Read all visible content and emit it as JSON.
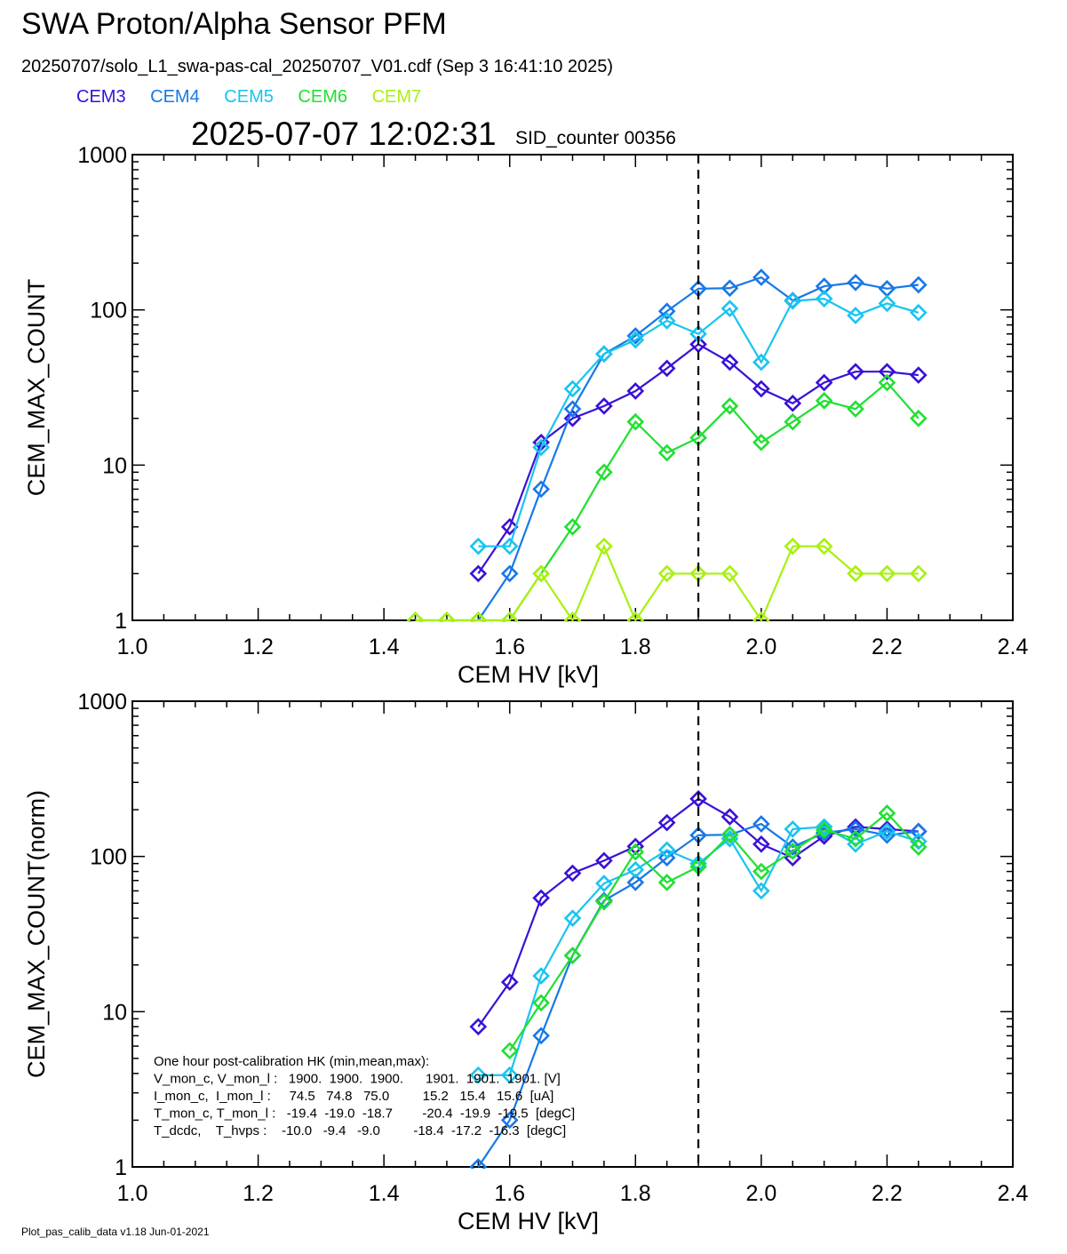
{
  "header": {
    "title": "SWA Proton/Alpha Sensor PFM",
    "subtitle": "20250707/solo_L1_swa-pas-cal_20250707_V01.cdf  (Sep  3 16:41:10 2025)",
    "timestamp": "2025-07-07 12:02:31",
    "sid_counter": "SID_counter 00356"
  },
  "legend": [
    {
      "name": "CEM3",
      "color": "#3a10d8"
    },
    {
      "name": "CEM4",
      "color": "#1878e8"
    },
    {
      "name": "CEM5",
      "color": "#18c4f0"
    },
    {
      "name": "CEM6",
      "color": "#20e030"
    },
    {
      "name": "CEM7",
      "color": "#a8f010"
    }
  ],
  "footer": "Plot_pas_calib_data v1.18 Jun-01-2021",
  "hk_text": [
    "One hour post-calibration HK (min,mean,max):",
    "V_mon_c, V_mon_l :   1900.  1900.  1900.      1901.  1901.  1901. [V]",
    "I_mon_c,  I_mon_l :     74.5   74.8   75.0         15.2   15.4   15.6  [uA]",
    "T_mon_c, T_mon_l :   -19.4  -19.0  -18.7        -20.4  -19.9  -19.5  [degC]",
    "T_dcdc,    T_hvps :    -10.0   -9.4   -9.0         -18.4  -17.2  -16.3  [degC]"
  ],
  "chart_data": [
    {
      "type": "line",
      "xlabel": "CEM HV [kV]",
      "ylabel": "CEM_MAX_COUNT",
      "xlim": [
        1.0,
        2.4
      ],
      "ylim": [
        1,
        1000
      ],
      "yscale": "log",
      "xticks": [
        "1.0",
        "1.2",
        "1.4",
        "1.6",
        "1.8",
        "2.0",
        "2.2",
        "2.4"
      ],
      "yticks": [
        "1",
        "10",
        "100",
        "1000"
      ],
      "vline_x": 1.9,
      "marker": "diamond",
      "series": [
        {
          "name": "CEM3",
          "color": "#3a10d8",
          "x": [
            1.55,
            1.6,
            1.65,
            1.7,
            1.75,
            1.8,
            1.85,
            1.9,
            1.95,
            2.0,
            2.05,
            2.1,
            2.15,
            2.2,
            2.25
          ],
          "y": [
            2,
            4,
            14,
            20,
            24,
            30,
            42,
            60,
            46,
            31,
            25,
            34,
            40,
            40,
            38
          ]
        },
        {
          "name": "CEM4",
          "color": "#1878e8",
          "x": [
            1.55,
            1.6,
            1.65,
            1.7,
            1.75,
            1.8,
            1.85,
            1.9,
            1.95,
            2.0,
            2.05,
            2.1,
            2.15,
            2.2,
            2.25
          ],
          "y": [
            1,
            2,
            7,
            23,
            52,
            68,
            98,
            137,
            138,
            162,
            115,
            142,
            150,
            137,
            145
          ]
        },
        {
          "name": "CEM5",
          "color": "#18c4f0",
          "x": [
            1.55,
            1.6,
            1.65,
            1.7,
            1.75,
            1.8,
            1.85,
            1.9,
            1.95,
            2.0,
            2.05,
            2.1,
            2.15,
            2.2,
            2.25
          ],
          "y": [
            3,
            3,
            13,
            31,
            52,
            64,
            85,
            70,
            102,
            46,
            114,
            118,
            92,
            110,
            96
          ]
        },
        {
          "name": "CEM6",
          "color": "#20e030",
          "x": [
            1.45,
            1.5,
            1.55,
            1.6,
            1.65,
            1.7,
            1.75,
            1.8,
            1.85,
            1.9,
            1.95,
            2.0,
            2.05,
            2.1,
            2.15,
            2.2,
            2.25
          ],
          "y": [
            1,
            1,
            1,
            1,
            2,
            4,
            9,
            19,
            12,
            15,
            24,
            14,
            19,
            26,
            23,
            34,
            20
          ]
        },
        {
          "name": "CEM7",
          "color": "#a8f010",
          "x": [
            1.45,
            1.5,
            1.55,
            1.6,
            1.65,
            1.7,
            1.75,
            1.8,
            1.85,
            1.9,
            1.95,
            2.0,
            2.05,
            2.1,
            2.15,
            2.2,
            2.25
          ],
          "y": [
            1,
            1,
            1,
            1,
            2,
            1,
            3,
            1,
            2,
            2,
            2,
            1,
            3,
            3,
            2,
            2,
            2
          ]
        }
      ]
    },
    {
      "type": "line",
      "xlabel": "CEM HV [kV]",
      "ylabel": "CEM_MAX_COUNT(norm)",
      "xlim": [
        1.0,
        2.4
      ],
      "ylim": [
        1,
        1000
      ],
      "yscale": "log",
      "xticks": [
        "1.0",
        "1.2",
        "1.4",
        "1.6",
        "1.8",
        "2.0",
        "2.2",
        "2.4"
      ],
      "yticks": [
        "1",
        "10",
        "100",
        "1000"
      ],
      "vline_x": 1.9,
      "marker": "diamond",
      "series": [
        {
          "name": "CEM3",
          "color": "#3a10d8",
          "x": [
            1.55,
            1.6,
            1.65,
            1.7,
            1.75,
            1.8,
            1.85,
            1.9,
            1.95,
            2.0,
            2.05,
            2.1,
            2.15,
            2.2,
            2.25
          ],
          "y": [
            8,
            15.5,
            54,
            78,
            94,
            116,
            165,
            235,
            180,
            120,
            98,
            135,
            155,
            150,
            145
          ]
        },
        {
          "name": "CEM4",
          "color": "#1878e8",
          "x": [
            1.55,
            1.6,
            1.65,
            1.7,
            1.75,
            1.8,
            1.85,
            1.9,
            1.95,
            2.0,
            2.05,
            2.1,
            2.15,
            2.2,
            2.25
          ],
          "y": [
            1,
            2,
            7,
            23,
            52,
            68,
            98,
            137,
            138,
            162,
            115,
            142,
            150,
            137,
            145
          ]
        },
        {
          "name": "CEM5",
          "color": "#18c4f0",
          "x": [
            1.55,
            1.6,
            1.65,
            1.7,
            1.75,
            1.8,
            1.85,
            1.9,
            1.95,
            2.0,
            2.05,
            2.1,
            2.15,
            2.2,
            2.25
          ],
          "y": [
            3.9,
            3.9,
            17,
            40,
            67,
            82,
            110,
            90,
            130,
            60,
            150,
            155,
            120,
            145,
            125
          ]
        },
        {
          "name": "CEM6",
          "color": "#20e030",
          "x": [
            1.6,
            1.65,
            1.7,
            1.75,
            1.8,
            1.85,
            1.9,
            1.95,
            2.0,
            2.05,
            2.1,
            2.15,
            2.2,
            2.25
          ],
          "y": [
            5.6,
            11.4,
            23,
            51,
            107,
            68,
            86,
            138,
            80,
            108,
            148,
            130,
            190,
            115
          ]
        }
      ]
    }
  ]
}
